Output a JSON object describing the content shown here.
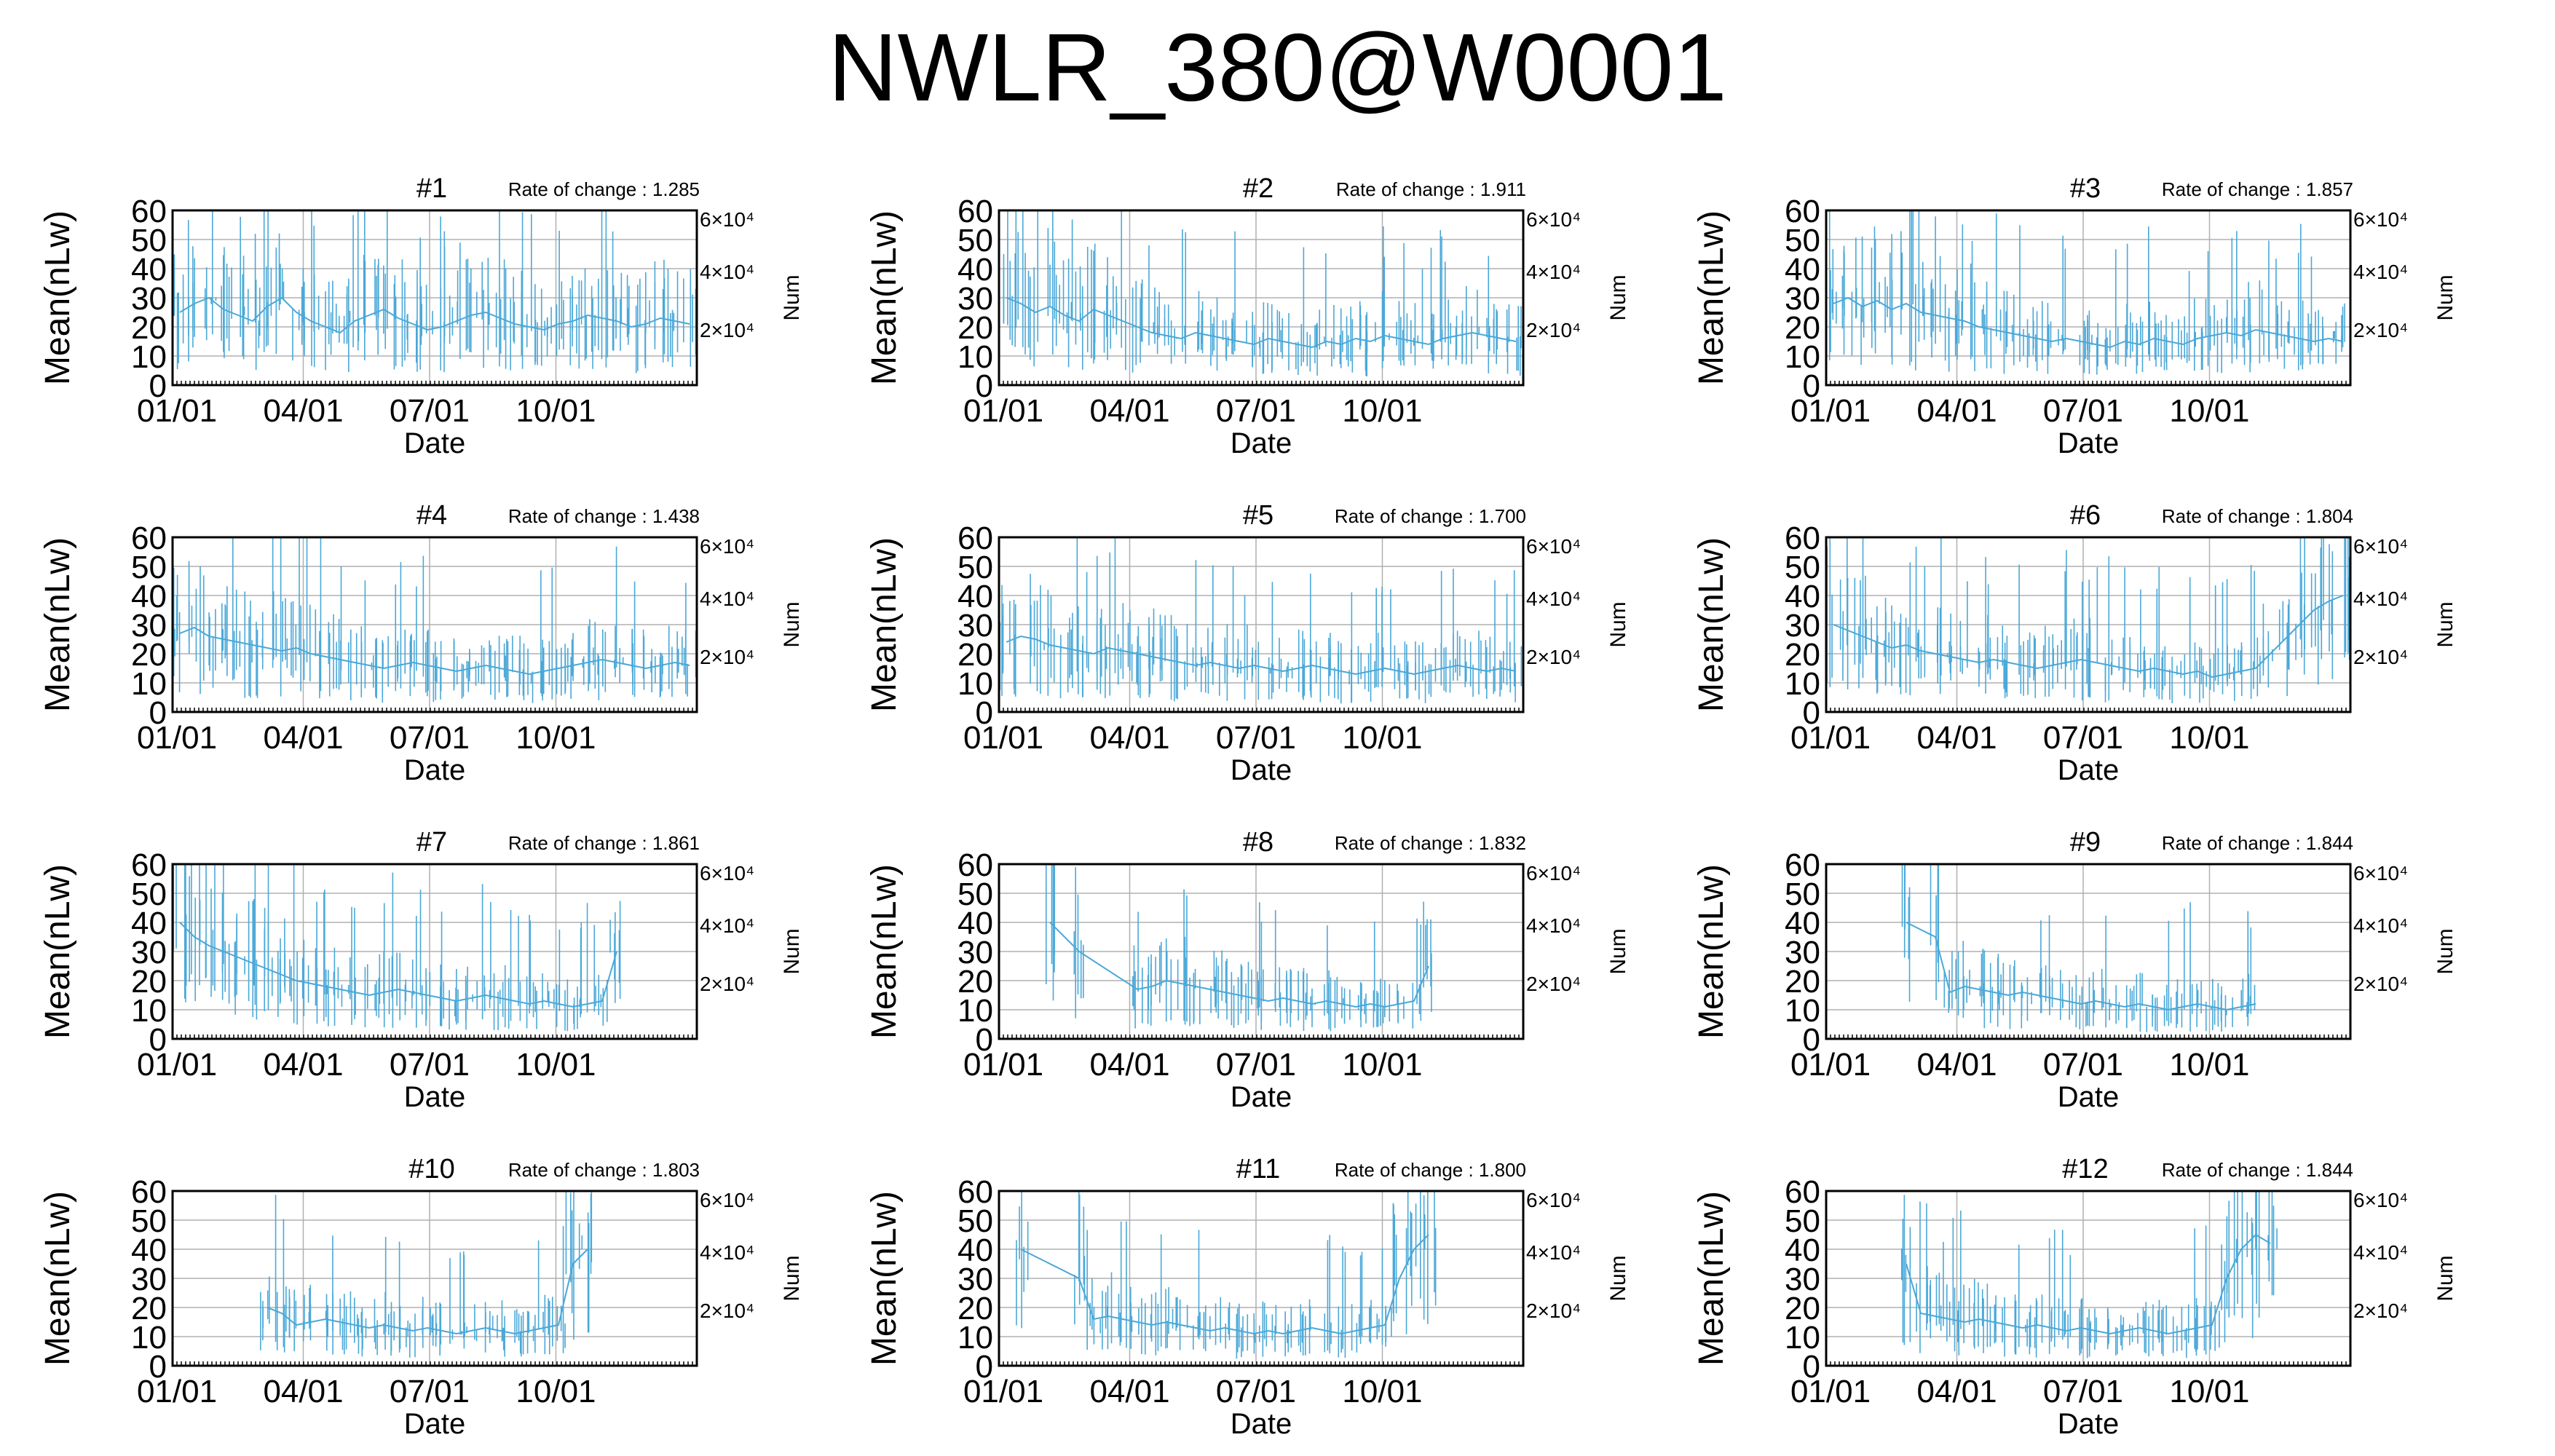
{
  "title": "NWLR_380@W0001",
  "colors": {
    "data_line": "#4aa8d8",
    "grid": "#b0b0b0",
    "frame": "#000000",
    "red_tick": "#e06060"
  },
  "chart_data": [
    {
      "type": "line",
      "panel": "#1",
      "rate_label": "Rate of change : 1.285",
      "xlabel": "Date",
      "ylabel": "Mean(nLw)",
      "y2label": "Num",
      "xticks": [
        "01/01",
        "04/01",
        "07/01",
        "10/01"
      ],
      "yticks": [
        0,
        10,
        20,
        30,
        40,
        50,
        60
      ],
      "ylim": [
        0,
        60
      ],
      "y2ticks": [
        "2×10⁴",
        "4×10⁴",
        "6×10⁴"
      ],
      "series": [
        {
          "values": [
            25,
            28,
            30,
            26,
            24,
            22,
            27,
            30,
            25,
            22,
            20,
            18,
            22,
            24,
            26,
            23,
            21,
            19,
            20,
            22,
            24,
            25,
            23,
            21,
            20,
            19,
            21,
            22,
            24,
            23,
            22,
            20,
            21,
            23,
            22,
            21
          ]
        }
      ]
    },
    {
      "type": "line",
      "panel": "#2",
      "rate_label": "Rate of change : 1.911",
      "xlabel": "Date",
      "ylabel": "Mean(nLw)",
      "y2label": "Num",
      "xticks": [
        "01/01",
        "04/01",
        "07/01",
        "10/01"
      ],
      "yticks": [
        0,
        10,
        20,
        30,
        40,
        50,
        60
      ],
      "ylim": [
        0,
        60
      ],
      "y2ticks": [
        "2×10⁴",
        "4×10⁴",
        "6×10⁴"
      ],
      "series": [
        {
          "values": [
            30,
            28,
            25,
            27,
            24,
            22,
            26,
            24,
            22,
            20,
            18,
            17,
            16,
            18,
            17,
            16,
            15,
            14,
            16,
            15,
            14,
            13,
            15,
            14,
            16,
            15,
            17,
            16,
            15,
            14,
            16,
            17,
            18,
            17,
            16,
            15
          ]
        }
      ]
    },
    {
      "type": "line",
      "panel": "#3",
      "rate_label": "Rate of change : 1.857",
      "xlabel": "Date",
      "ylabel": "Mean(nLw)",
      "y2label": "Num",
      "xticks": [
        "01/01",
        "04/01",
        "07/01",
        "10/01"
      ],
      "yticks": [
        0,
        10,
        20,
        30,
        40,
        50,
        60
      ],
      "ylim": [
        0,
        60
      ],
      "y2ticks": [
        "2×10⁴",
        "4×10⁴",
        "6×10⁴"
      ],
      "series": [
        {
          "values": [
            28,
            30,
            27,
            29,
            26,
            28,
            25,
            24,
            23,
            22,
            20,
            19,
            18,
            17,
            16,
            15,
            16,
            15,
            14,
            13,
            15,
            14,
            16,
            15,
            14,
            16,
            17,
            18,
            17,
            19,
            18,
            17,
            16,
            15,
            16,
            15
          ]
        }
      ]
    },
    {
      "type": "line",
      "panel": "#4",
      "rate_label": "Rate of change : 1.438",
      "xlabel": "Date",
      "ylabel": "Mean(nLw)",
      "y2label": "Num",
      "xticks": [
        "01/01",
        "04/01",
        "07/01",
        "10/01"
      ],
      "yticks": [
        0,
        10,
        20,
        30,
        40,
        50,
        60
      ],
      "ylim": [
        0,
        60
      ],
      "y2ticks": [
        "2×10⁴",
        "4×10⁴",
        "6×10⁴"
      ],
      "series": [
        {
          "values": [
            27,
            29,
            26,
            25,
            24,
            23,
            22,
            21,
            22,
            20,
            19,
            18,
            17,
            16,
            15,
            16,
            17,
            16,
            15,
            14,
            15,
            16,
            15,
            14,
            13,
            14,
            15,
            16,
            17,
            18,
            17,
            16,
            15,
            16,
            17,
            16
          ]
        }
      ]
    },
    {
      "type": "line",
      "panel": "#5",
      "rate_label": "Rate of change : 1.700",
      "xlabel": "Date",
      "ylabel": "Mean(nLw)",
      "y2label": "Num",
      "xticks": [
        "01/01",
        "04/01",
        "07/01",
        "10/01"
      ],
      "yticks": [
        0,
        10,
        20,
        30,
        40,
        50,
        60
      ],
      "ylim": [
        0,
        60
      ],
      "y2ticks": [
        "2×10⁴",
        "4×10⁴",
        "6×10⁴"
      ],
      "series": [
        {
          "values": [
            24,
            26,
            25,
            23,
            22,
            21,
            20,
            22,
            21,
            20,
            19,
            18,
            17,
            16,
            17,
            16,
            15,
            16,
            15,
            14,
            15,
            16,
            15,
            14,
            13,
            14,
            15,
            14,
            13,
            14,
            15,
            16,
            15,
            14,
            15,
            14
          ]
        }
      ]
    },
    {
      "type": "line",
      "panel": "#6",
      "rate_label": "Rate of change : 1.804",
      "xlabel": "Date",
      "ylabel": "Mean(nLw)",
      "y2label": "Num",
      "xticks": [
        "01/01",
        "04/01",
        "07/01",
        "10/01"
      ],
      "yticks": [
        0,
        10,
        20,
        30,
        40,
        50,
        60
      ],
      "ylim": [
        0,
        60
      ],
      "y2ticks": [
        "2×10⁴",
        "4×10⁴",
        "6×10⁴"
      ],
      "series": [
        {
          "values": [
            30,
            28,
            26,
            24,
            22,
            23,
            21,
            20,
            19,
            18,
            17,
            18,
            17,
            16,
            15,
            16,
            17,
            18,
            17,
            16,
            15,
            14,
            15,
            14,
            13,
            14,
            12,
            13,
            14,
            15,
            20,
            25,
            30,
            35,
            38,
            40
          ]
        }
      ]
    },
    {
      "type": "line",
      "panel": "#7",
      "rate_label": "Rate of change : 1.861",
      "xlabel": "Date",
      "ylabel": "Mean(nLw)",
      "y2label": "Num",
      "xticks": [
        "01/01",
        "04/01",
        "07/01",
        "10/01"
      ],
      "yticks": [
        0,
        10,
        20,
        30,
        40,
        50,
        60
      ],
      "ylim": [
        0,
        60
      ],
      "y2ticks": [
        "2×10⁴",
        "4×10⁴",
        "6×10⁴"
      ],
      "series": [
        {
          "values": [
            40,
            35,
            32,
            30,
            28,
            26,
            24,
            22,
            20,
            19,
            18,
            17,
            16,
            15,
            16,
            17,
            16,
            15,
            14,
            13,
            14,
            15,
            14,
            13,
            12,
            13,
            12,
            11,
            12,
            13,
            30,
            null,
            null,
            null,
            null,
            null
          ]
        }
      ]
    },
    {
      "type": "line",
      "panel": "#8",
      "rate_label": "Rate of change : 1.832",
      "xlabel": "Date",
      "ylabel": "Mean(nLw)",
      "y2label": "Num",
      "xticks": [
        "01/01",
        "04/01",
        "07/01",
        "10/01"
      ],
      "yticks": [
        0,
        10,
        20,
        30,
        40,
        50,
        60
      ],
      "ylim": [
        0,
        60
      ],
      "y2ticks": [
        "2×10⁴",
        "4×10⁴",
        "6×10⁴"
      ],
      "series": [
        {
          "values": [
            null,
            null,
            null,
            40,
            null,
            30,
            null,
            null,
            null,
            17,
            18,
            20,
            19,
            18,
            17,
            16,
            15,
            14,
            13,
            14,
            13,
            12,
            13,
            12,
            11,
            12,
            11,
            12,
            13,
            25,
            null,
            null,
            null,
            null,
            null,
            null
          ]
        }
      ]
    },
    {
      "type": "line",
      "panel": "#9",
      "rate_label": "Rate of change : 1.844",
      "xlabel": "Date",
      "ylabel": "Mean(nLw)",
      "y2label": "Num",
      "xticks": [
        "01/01",
        "04/01",
        "07/01",
        "10/01"
      ],
      "yticks": [
        0,
        10,
        20,
        30,
        40,
        50,
        60
      ],
      "ylim": [
        0,
        60
      ],
      "y2ticks": [
        "2×10⁴",
        "4×10⁴",
        "6×10⁴"
      ],
      "series": [
        {
          "values": [
            null,
            null,
            null,
            null,
            null,
            40,
            null,
            35,
            16,
            18,
            17,
            16,
            15,
            16,
            15,
            14,
            13,
            12,
            13,
            12,
            11,
            12,
            11,
            10,
            11,
            12,
            11,
            10,
            11,
            12,
            null,
            null,
            null,
            null,
            null,
            null
          ]
        }
      ]
    },
    {
      "type": "line",
      "panel": "#10",
      "rate_label": "Rate of change : 1.803",
      "xlabel": "Date",
      "ylabel": "Mean(nLw)",
      "y2label": "Num",
      "xticks": [
        "01/01",
        "04/01",
        "07/01",
        "10/01"
      ],
      "yticks": [
        0,
        10,
        20,
        30,
        40,
        50,
        60
      ],
      "ylim": [
        0,
        60
      ],
      "y2ticks": [
        "2×10⁴",
        "4×10⁴",
        "6×10⁴"
      ],
      "series": [
        {
          "values": [
            null,
            null,
            null,
            null,
            null,
            null,
            20,
            18,
            14,
            15,
            16,
            15,
            14,
            13,
            14,
            13,
            12,
            13,
            12,
            11,
            12,
            13,
            12,
            11,
            12,
            13,
            14,
            35,
            40,
            null,
            null,
            null,
            null,
            null,
            null,
            null
          ]
        }
      ]
    },
    {
      "type": "line",
      "panel": "#11",
      "rate_label": "Rate of change : 1.800",
      "xlabel": "Date",
      "ylabel": "Mean(nLw)",
      "y2label": "Num",
      "xticks": [
        "01/01",
        "04/01",
        "07/01",
        "10/01"
      ],
      "yticks": [
        0,
        10,
        20,
        30,
        40,
        50,
        60
      ],
      "ylim": [
        0,
        60
      ],
      "y2ticks": [
        "2×10⁴",
        "4×10⁴",
        "6×10⁴"
      ],
      "series": [
        {
          "values": [
            null,
            40,
            null,
            null,
            null,
            30,
            16,
            17,
            16,
            15,
            14,
            15,
            14,
            13,
            12,
            13,
            12,
            11,
            12,
            11,
            12,
            13,
            12,
            11,
            12,
            13,
            14,
            30,
            40,
            45,
            null,
            null,
            null,
            null,
            null,
            null
          ]
        }
      ]
    },
    {
      "type": "line",
      "panel": "#12",
      "rate_label": "Rate of change : 1.844",
      "xlabel": "Date",
      "ylabel": "Mean(nLw)",
      "y2label": "Num",
      "xticks": [
        "01/01",
        "04/01",
        "07/01",
        "10/01"
      ],
      "yticks": [
        0,
        10,
        20,
        30,
        40,
        50,
        60
      ],
      "ylim": [
        0,
        60
      ],
      "y2ticks": [
        "2×10⁴",
        "4×10⁴",
        "6×10⁴"
      ],
      "series": [
        {
          "values": [
            null,
            null,
            null,
            null,
            null,
            35,
            18,
            17,
            16,
            15,
            16,
            15,
            14,
            13,
            14,
            13,
            12,
            13,
            12,
            11,
            12,
            13,
            12,
            11,
            12,
            13,
            14,
            30,
            40,
            45,
            42,
            null,
            null,
            null,
            null,
            null
          ]
        }
      ]
    }
  ]
}
